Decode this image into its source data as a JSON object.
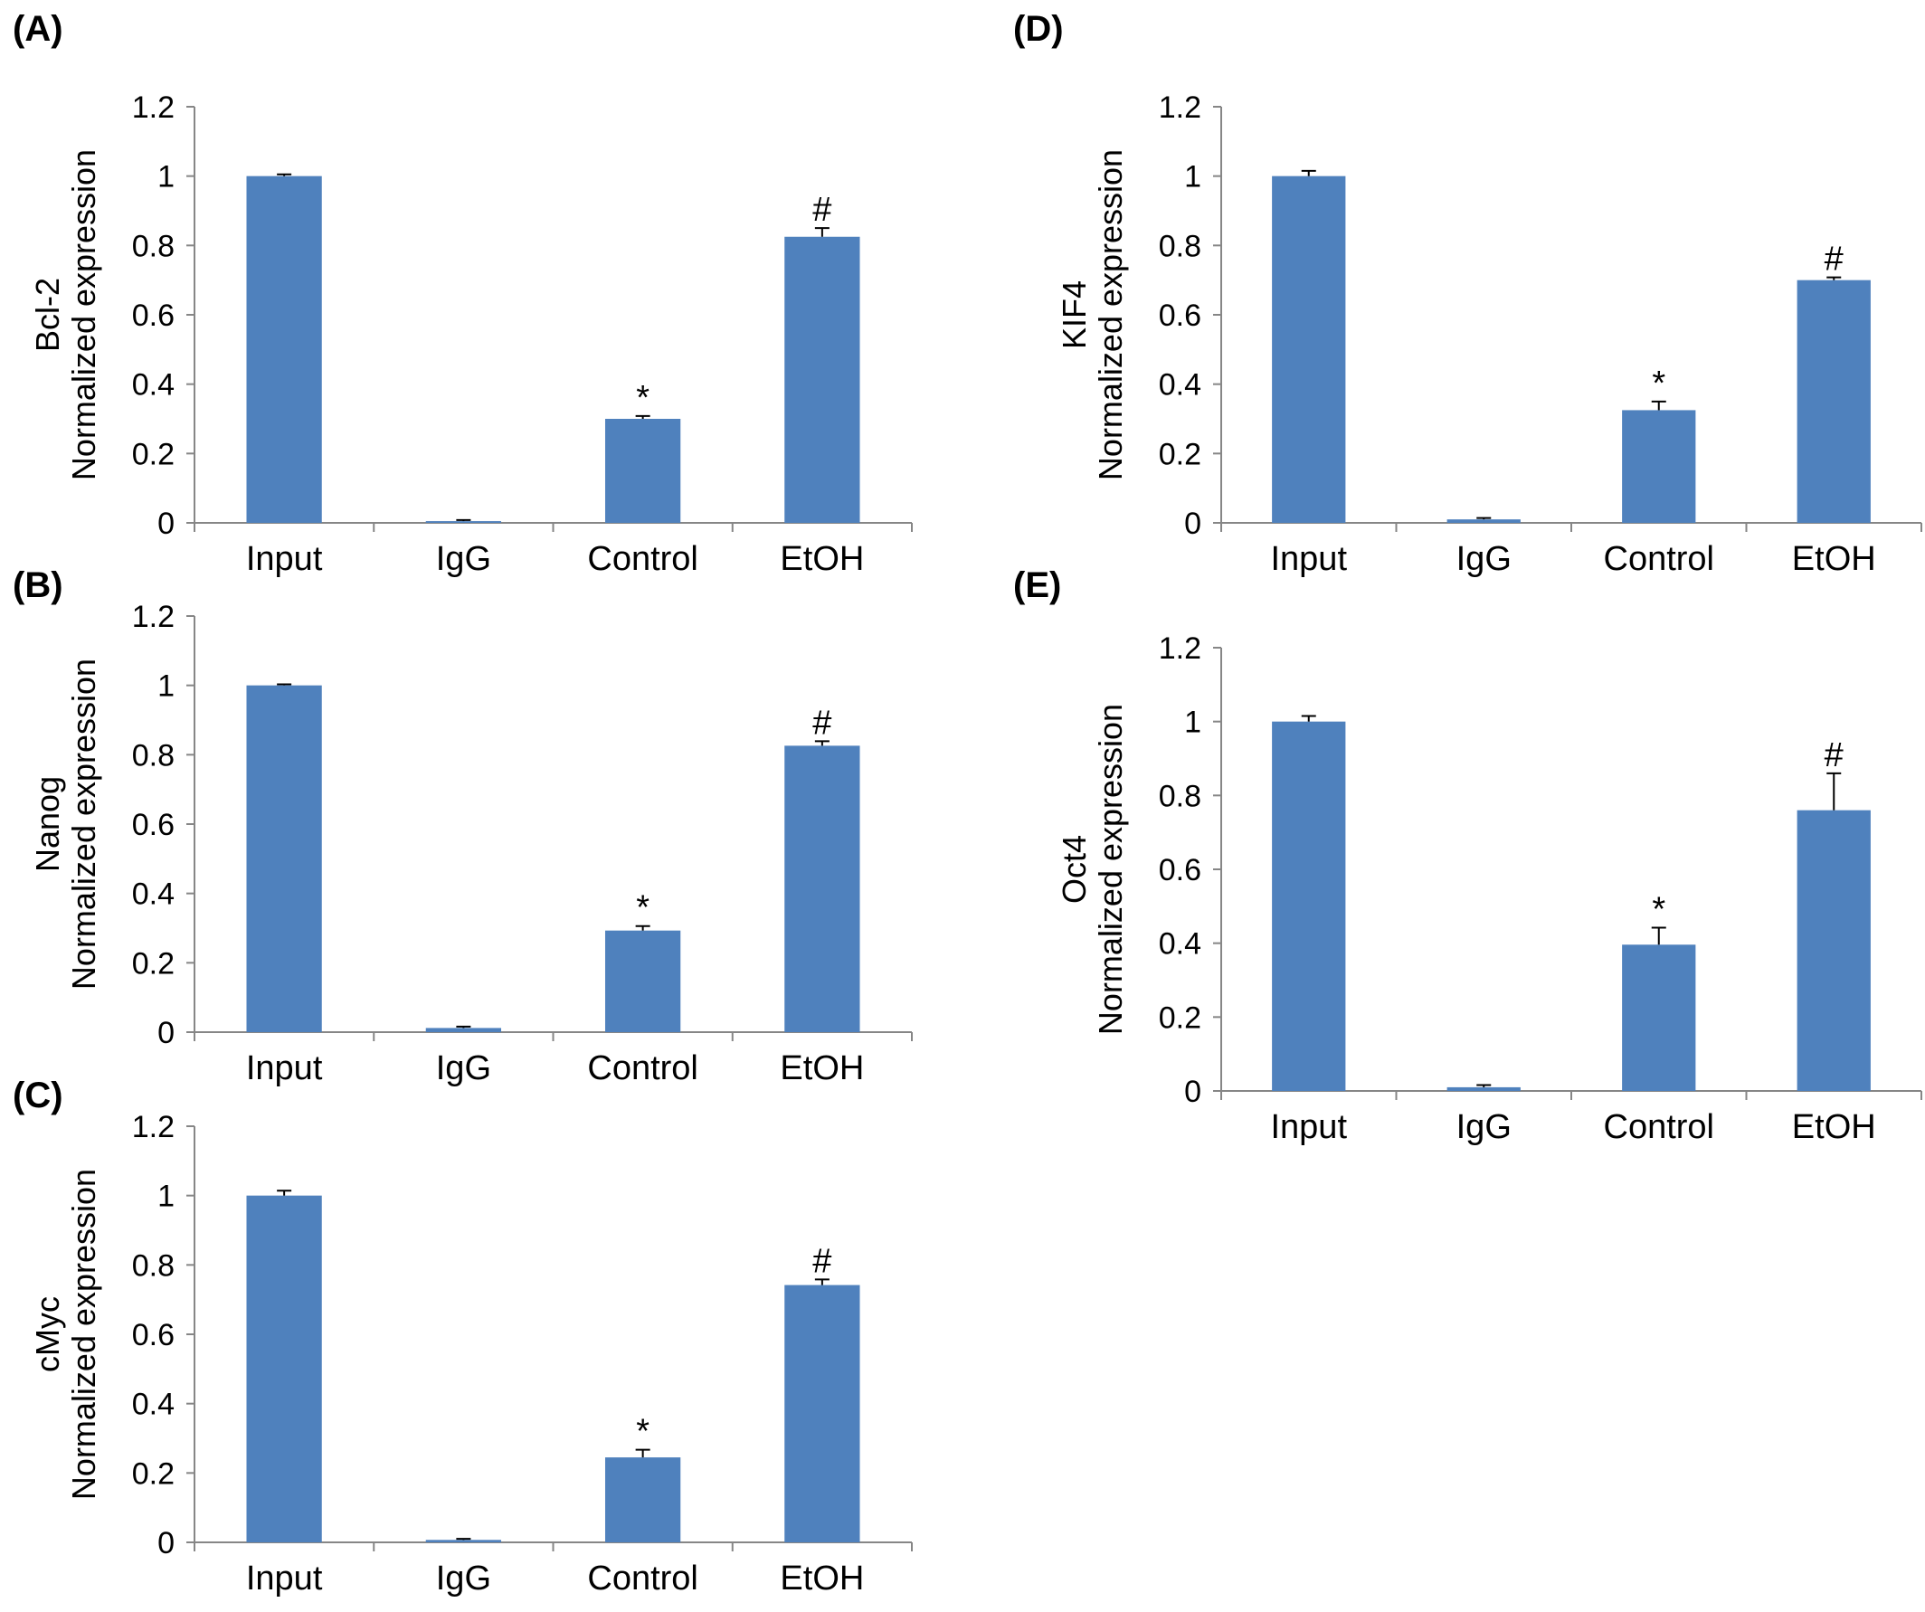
{
  "figure": {
    "bar_color": "#4f81bd",
    "axis_color": "#868686",
    "text_color": "#000000"
  },
  "chart_data": [
    {
      "panel": "(A)",
      "type": "bar",
      "categories": [
        "Input",
        "IgG",
        "Control",
        "EtOH"
      ],
      "values": [
        1.0,
        0.005,
        0.3,
        0.825
      ],
      "errors": [
        0.005,
        0.003,
        0.008,
        0.025
      ],
      "markers": [
        "",
        "",
        "*",
        "#"
      ],
      "ylabel_top": "Bcl-2",
      "ylabel": "Normalized expression",
      "ylim": [
        0,
        1.2
      ],
      "yticks": [
        "0",
        "0.2",
        "0.4",
        "0.6",
        "0.8",
        "1",
        "1.2"
      ],
      "grid": false
    },
    {
      "panel": "(B)",
      "type": "bar",
      "categories": [
        "Input",
        "IgG",
        "Control",
        "EtOH"
      ],
      "values": [
        1.0,
        0.012,
        0.293,
        0.826
      ],
      "errors": [
        0.003,
        0.004,
        0.013,
        0.013
      ],
      "markers": [
        "",
        "",
        "*",
        "#"
      ],
      "ylabel_top": "Nanog",
      "ylabel": "Normalized expression",
      "ylim": [
        0,
        1.2
      ],
      "yticks": [
        "0",
        "0.2",
        "0.4",
        "0.6",
        "0.8",
        "1",
        "1.2"
      ],
      "grid": false
    },
    {
      "panel": "(C)",
      "type": "bar",
      "categories": [
        "Input",
        "IgG",
        "Control",
        "EtOH"
      ],
      "values": [
        1.0,
        0.007,
        0.245,
        0.742
      ],
      "errors": [
        0.014,
        0.003,
        0.022,
        0.016
      ],
      "markers": [
        "",
        "",
        "*",
        "#"
      ],
      "ylabel_top": "cMyc",
      "ylabel": "Normalized expression",
      "ylim": [
        0,
        1.2
      ],
      "yticks": [
        "0",
        "0.2",
        "0.4",
        "0.6",
        "0.8",
        "1",
        "1.2"
      ],
      "grid": false
    },
    {
      "panel": "(D)",
      "type": "bar",
      "categories": [
        "Input",
        "IgG",
        "Control",
        "EtOH"
      ],
      "values": [
        1.0,
        0.01,
        0.325,
        0.7
      ],
      "errors": [
        0.015,
        0.004,
        0.025,
        0.008
      ],
      "markers": [
        "",
        "",
        "*",
        "#"
      ],
      "ylabel_top": "KIF4",
      "ylabel": "Normalized expression",
      "ylim": [
        0,
        1.2
      ],
      "yticks": [
        "0",
        "0.2",
        "0.4",
        "0.6",
        "0.8",
        "1",
        "1.2"
      ],
      "grid": false
    },
    {
      "panel": "(E)",
      "type": "bar",
      "categories": [
        "Input",
        "IgG",
        "Control",
        "EtOH"
      ],
      "values": [
        1.0,
        0.01,
        0.396,
        0.76
      ],
      "errors": [
        0.015,
        0.006,
        0.046,
        0.1
      ],
      "markers": [
        "",
        "",
        "*",
        "#"
      ],
      "ylabel_top": "Oct4",
      "ylabel": "Normalized expression",
      "ylim": [
        0,
        1.2
      ],
      "yticks": [
        "0",
        "0.2",
        "0.4",
        "0.6",
        "0.8",
        "1",
        "1.2"
      ],
      "grid": false
    }
  ]
}
